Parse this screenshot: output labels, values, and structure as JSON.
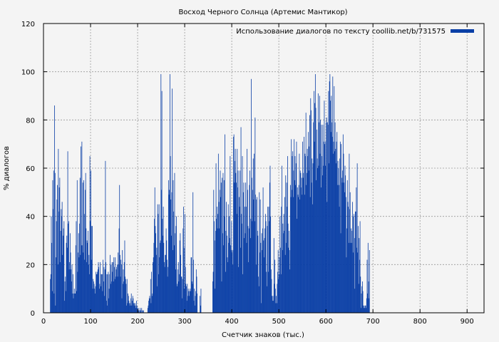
{
  "chart_data": {
    "type": "bar",
    "title": "Восход Черного Солнца (Артемис Мантикор)",
    "xlabel": "Счетчик знаков (тыс.)",
    "ylabel": "% диалогов",
    "xlim": [
      0,
      936
    ],
    "ylim": [
      0,
      120
    ],
    "xticks": [
      0,
      100,
      200,
      300,
      400,
      500,
      600,
      700,
      800,
      900
    ],
    "yticks": [
      0,
      20,
      40,
      60,
      80,
      100,
      120
    ],
    "grid": true,
    "legend_position": "top-right",
    "bar_color": "#0a3fa6",
    "bar_width": 1,
    "series": [
      {
        "name": "Использование диалогов по тексту coollib.net/b/731575",
        "x_start": 14,
        "x_step": 1,
        "values": [
          14,
          16,
          40,
          29,
          9,
          55,
          43,
          59,
          8,
          86,
          58,
          3,
          23,
          38,
          47,
          53,
          20,
          68,
          42,
          52,
          56,
          21,
          34,
          43,
          40,
          46,
          24,
          32,
          35,
          38,
          5,
          13,
          15,
          9,
          29,
          32,
          27,
          67,
          37,
          38,
          18,
          21,
          33,
          25,
          18,
          13,
          20,
          8,
          16,
          6,
          8,
          10,
          8,
          8,
          28,
          38,
          9,
          55,
          17,
          25,
          33,
          23,
          37,
          56,
          24,
          69,
          28,
          71,
          28,
          54,
          25,
          55,
          41,
          22,
          51,
          58,
          35,
          21,
          30,
          29,
          34,
          20,
          24,
          16,
          65,
          38,
          59,
          22,
          36,
          36,
          10,
          14,
          13,
          12,
          10,
          8,
          11,
          17,
          16,
          16,
          17,
          18,
          21,
          19,
          10,
          12,
          21,
          11,
          16,
          16,
          16,
          9,
          22,
          13,
          19,
          7,
          18,
          63,
          21,
          5,
          16,
          3,
          16,
          17,
          6,
          10,
          16,
          24,
          12,
          20,
          13,
          21,
          17,
          21,
          13,
          23,
          19,
          14,
          23,
          15,
          18,
          19,
          20,
          15,
          25,
          20,
          35,
          53,
          24,
          15,
          22,
          20,
          6,
          26,
          12,
          18,
          13,
          21,
          30,
          15,
          14,
          12,
          3,
          14,
          4,
          8,
          7,
          5,
          4,
          3,
          4,
          6,
          8,
          3,
          5,
          7,
          6,
          4,
          3,
          4,
          4,
          3,
          2,
          5,
          3,
          2,
          1,
          2,
          1,
          0,
          1,
          2,
          1,
          0,
          2,
          1,
          0,
          1,
          1,
          0,
          0,
          0,
          0,
          0,
          0,
          0,
          0,
          2,
          3,
          5,
          6,
          7,
          6,
          14,
          4,
          17,
          7,
          8,
          21,
          23,
          29,
          39,
          52,
          36,
          33,
          24,
          27,
          11,
          45,
          41,
          16,
          45,
          23,
          29,
          30,
          99,
          51,
          92,
          39,
          32,
          44,
          29,
          21,
          19,
          24,
          24,
          35,
          30,
          22,
          15,
          19,
          55,
          49,
          51,
          99,
          65,
          47,
          32,
          50,
          93,
          26,
          55,
          42,
          28,
          58,
          33,
          18,
          36,
          40,
          11,
          12,
          18,
          21,
          13,
          16,
          30,
          33,
          24,
          15,
          15,
          6,
          14,
          35,
          44,
          27,
          10,
          41,
          19,
          12,
          11,
          5,
          12,
          7,
          10,
          9,
          7,
          9,
          10,
          9,
          23,
          23,
          13,
          12,
          50,
          22,
          5,
          10,
          3,
          7,
          9,
          18,
          15,
          8,
          0,
          0,
          0,
          0,
          0,
          7,
          3,
          10,
          0,
          0,
          0,
          0,
          0,
          0,
          0,
          0,
          0,
          0,
          0,
          0,
          0,
          0,
          0,
          0,
          0,
          0,
          0,
          0,
          0,
          0,
          0,
          0,
          13,
          17,
          51,
          38,
          30,
          10,
          34,
          62,
          39,
          44,
          35,
          41,
          66,
          46,
          35,
          51,
          59,
          48,
          54,
          13,
          56,
          33,
          58,
          28,
          55,
          40,
          74,
          17,
          34,
          46,
          32,
          23,
          21,
          45,
          29,
          40,
          31,
          65,
          28,
          26,
          38,
          25,
          26,
          20,
          73,
          74,
          54,
          63,
          68,
          58,
          54,
          41,
          68,
          52,
          59,
          19,
          48,
          44,
          59,
          27,
          77,
          41,
          37,
          65,
          16,
          50,
          54,
          31,
          44,
          33,
          54,
          44,
          29,
          68,
          51,
          36,
          21,
          35,
          53,
          59,
          31,
          39,
          97,
          56,
          38,
          51,
          64,
          47,
          66,
          38,
          81,
          49,
          20,
          47,
          48,
          34,
          32,
          15,
          11,
          50,
          25,
          47,
          29,
          4,
          33,
          26,
          35,
          52,
          30,
          23,
          31,
          35,
          41,
          38,
          17,
          11,
          36,
          44,
          17,
          44,
          38,
          54,
          61,
          40,
          18,
          14,
          7,
          5,
          7,
          5,
          31,
          12,
          22,
          10,
          4,
          7,
          4,
          12,
          17,
          26,
          14,
          16,
          23,
          40,
          27,
          16,
          44,
          61,
          26,
          37,
          33,
          41,
          34,
          48,
          24,
          57,
          29,
          54,
          44,
          65,
          37,
          27,
          34,
          26,
          18,
          53,
          48,
          72,
          51,
          65,
          67,
          48,
          59,
          72,
          55,
          65,
          53,
          62,
          71,
          39,
          52,
          49,
          48,
          53,
          66,
          47,
          59,
          58,
          52,
          56,
          49,
          71,
          56,
          58,
          73,
          49,
          66,
          65,
          83,
          53,
          58,
          68,
          65,
          75,
          59,
          69,
          82,
          48,
          89,
          84,
          54,
          64,
          45,
          62,
          79,
          92,
          71,
          87,
          99,
          85,
          55,
          76,
          64,
          60,
          91,
          61,
          79,
          90,
          66,
          80,
          52,
          78,
          65,
          57,
          78,
          61,
          71,
          88,
          70,
          61,
          71,
          79,
          81,
          46,
          79,
          78,
          92,
          62,
          96,
          99,
          88,
          75,
          90,
          79,
          73,
          98,
          66,
          71,
          94,
          67,
          79,
          68,
          62,
          71,
          75,
          53,
          63,
          60,
          53,
          44,
          64,
          71,
          33,
          70,
          56,
          54,
          59,
          74,
          66,
          54,
          50,
          61,
          57,
          48,
          23,
          35,
          55,
          46,
          44,
          29,
          66,
          43,
          50,
          29,
          35,
          29,
          34,
          46,
          25,
          40,
          41,
          31,
          10,
          42,
          42,
          52,
          27,
          62,
          25,
          36,
          12,
          31,
          22,
          38,
          15,
          2,
          8,
          11,
          13,
          9,
          3,
          2,
          3,
          2,
          3,
          3,
          2,
          6,
          22,
          8,
          29,
          13,
          6,
          26,
          0,
          0,
          0,
          0,
          0,
          0,
          0,
          0,
          0,
          0,
          0,
          0,
          0,
          0,
          0,
          0,
          0,
          0,
          0,
          0,
          0,
          0,
          0,
          0,
          0,
          0,
          0,
          0,
          0,
          0,
          0,
          0,
          0,
          0,
          0,
          0,
          0,
          0,
          0,
          0,
          0,
          0,
          0,
          0,
          0,
          0,
          0,
          0,
          0,
          0,
          0,
          0,
          0,
          0,
          0,
          0,
          0,
          0,
          0,
          0,
          0,
          0,
          0,
          0,
          0,
          0,
          0,
          0,
          0,
          0,
          0,
          0,
          0,
          0,
          0,
          0,
          0,
          0,
          0,
          0,
          0,
          0,
          0,
          0,
          0,
          0,
          0,
          0,
          0,
          0,
          0,
          0,
          0,
          0,
          0,
          0,
          0,
          0,
          0,
          0,
          0,
          0,
          0,
          0,
          0,
          0,
          0,
          0,
          0,
          0,
          0,
          0,
          0,
          0,
          0,
          0,
          0,
          0,
          0,
          0,
          0,
          0,
          0,
          0,
          0,
          0,
          0,
          0,
          0,
          0,
          0,
          0,
          0,
          0,
          0,
          0,
          0,
          0,
          0,
          0,
          0,
          0,
          0,
          0,
          0,
          0,
          0,
          0,
          0,
          0,
          0,
          0,
          0,
          0,
          0,
          0,
          0,
          0,
          0,
          0,
          0,
          0,
          0,
          0,
          0,
          0,
          0,
          0,
          0,
          0,
          0,
          0,
          0,
          0,
          0,
          0,
          0,
          0,
          0,
          0,
          0,
          0,
          0,
          0,
          0,
          0,
          0,
          0,
          0,
          0,
          0,
          0,
          0,
          0,
          0,
          0,
          0,
          0,
          0,
          0,
          0,
          0,
          0,
          0,
          0,
          0,
          0,
          0,
          0,
          0,
          0,
          0,
          0,
          0,
          0,
          0,
          0,
          0,
          0,
          0,
          0,
          0,
          0,
          0,
          0,
          0,
          0,
          0,
          0,
          0,
          0,
          0,
          0,
          0,
          0,
          0,
          0,
          0,
          0,
          0,
          0,
          0,
          0,
          0,
          0,
          0,
          0,
          0,
          0,
          0,
          0,
          0,
          0,
          0,
          0,
          0,
          0,
          0,
          0,
          0,
          0,
          0,
          0,
          0,
          0,
          0,
          0,
          0,
          0,
          0,
          0,
          0,
          0,
          0,
          0,
          0,
          0,
          0,
          0,
          0,
          0,
          0,
          0,
          0,
          0,
          0,
          0,
          0,
          0,
          0,
          0,
          0,
          0,
          0,
          0,
          0,
          0,
          0,
          0,
          0,
          0,
          0,
          0,
          0,
          0,
          0,
          0,
          0,
          0,
          0,
          0,
          0,
          0,
          0,
          0,
          0,
          0,
          0,
          0,
          0,
          0,
          0,
          0
        ]
      }
    ]
  }
}
